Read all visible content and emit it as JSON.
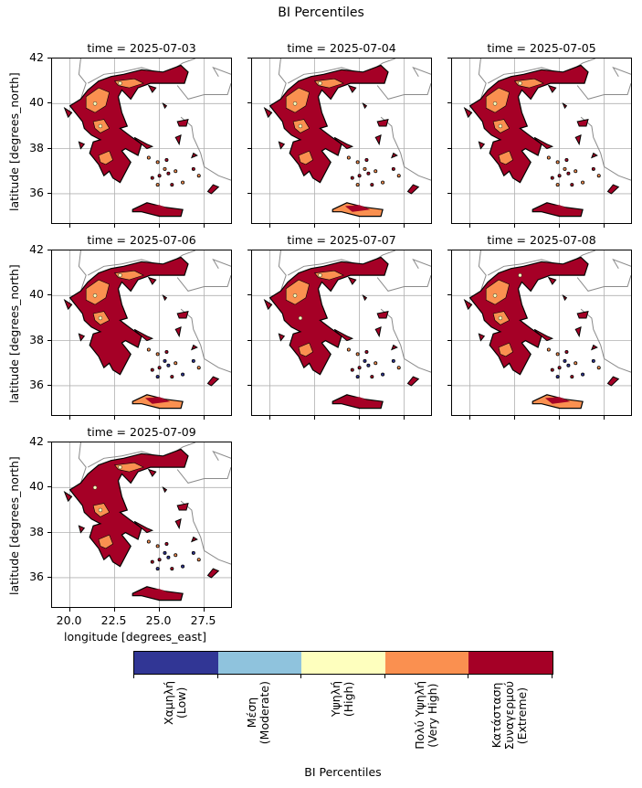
{
  "figure": {
    "title": "BI Percentiles",
    "y_axis_label": "latitude [degrees_north]",
    "x_axis_label": "longitude [degrees_east]",
    "y_ticks": [
      "42",
      "40",
      "38",
      "36"
    ],
    "x_ticks": [
      "20.0",
      "22.5",
      "25.0",
      "27.5"
    ]
  },
  "panels": [
    {
      "title": "time = 2025-07-03",
      "variant": 0
    },
    {
      "title": "time = 2025-07-04",
      "variant": 1
    },
    {
      "title": "time = 2025-07-05",
      "variant": 2
    },
    {
      "title": "time = 2025-07-06",
      "variant": 3
    },
    {
      "title": "time = 2025-07-07",
      "variant": 4
    },
    {
      "title": "time = 2025-07-08",
      "variant": 5
    },
    {
      "title": "time = 2025-07-09",
      "variant": 6
    }
  ],
  "colorbar": {
    "label": "BI Percentiles",
    "classes": [
      {
        "label": "Χαμηλή\n(Low)",
        "color": "#313695"
      },
      {
        "label": "Μέση\n(Moderate)",
        "color": "#8fc3dd"
      },
      {
        "label": "Υψηλή\n(High)",
        "color": "#feffbe"
      },
      {
        "label": "Πολύ Υψηλή\n(Very High)",
        "color": "#fa9050"
      },
      {
        "label": "Κατάσταση\nΣυναγερμού\n(Extreme)",
        "color": "#a50026"
      }
    ]
  },
  "map_style": {
    "gridline_color": "#b0b0b0",
    "border_color": "#8a8a8a",
    "outline_color": "#000000"
  }
}
